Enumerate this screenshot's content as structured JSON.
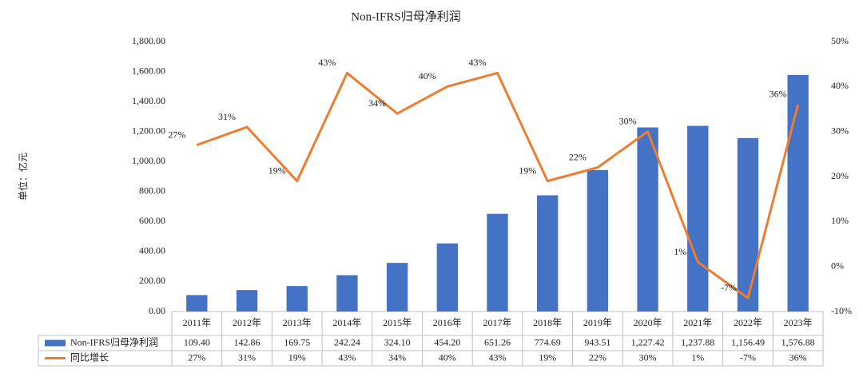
{
  "chart_data": {
    "type": "bar",
    "title": "Non-IFRS归母净利润",
    "y_label": "单位：亿元",
    "categories": [
      "2011年",
      "2012年",
      "2013年",
      "2014年",
      "2015年",
      "2016年",
      "2017年",
      "2018年",
      "2019年",
      "2020年",
      "2021年",
      "2022年",
      "2023年"
    ],
    "series": [
      {
        "name": "Non-IFRS归母净利润",
        "type": "bar",
        "color": "#4472c4",
        "values": [
          109.4,
          142.86,
          169.75,
          242.24,
          324.1,
          454.2,
          651.26,
          774.69,
          943.51,
          1227.42,
          1237.88,
          1156.49,
          1576.88
        ],
        "value_labels": [
          "109.40",
          "142.86",
          "169.75",
          "242.24",
          "324.10",
          "454.20",
          "651.26",
          "774.69",
          "943.51",
          "1,227.42",
          "1,237.88",
          "1,156.49",
          "1,576.88"
        ]
      },
      {
        "name": "同比增长",
        "type": "line",
        "axis": "y2",
        "color": "#ed7d31",
        "values": [
          27,
          31,
          19,
          43,
          34,
          40,
          43,
          19,
          22,
          30,
          1,
          -7,
          36
        ],
        "value_labels": [
          "27%",
          "31%",
          "19%",
          "43%",
          "34%",
          "40%",
          "43%",
          "19%",
          "22%",
          "30%",
          "1%",
          "-7%",
          "36%"
        ]
      }
    ],
    "ylim": [
      0,
      1800
    ],
    "yticks": [
      {
        "value": 0,
        "label": "0.00"
      },
      {
        "value": 200,
        "label": "200.00"
      },
      {
        "value": 400,
        "label": "400.00"
      },
      {
        "value": 600,
        "label": "600.00"
      },
      {
        "value": 800,
        "label": "800.00"
      },
      {
        "value": 1000,
        "label": "1,000.00"
      },
      {
        "value": 1200,
        "label": "1,200.00"
      },
      {
        "value": 1400,
        "label": "1,400.00"
      },
      {
        "value": 1600,
        "label": "1,600.00"
      },
      {
        "value": 1800,
        "label": "1,800.00"
      }
    ],
    "y2lim": [
      -10,
      50
    ],
    "y2ticks": [
      {
        "value": -10,
        "label": "-10%"
      },
      {
        "value": 0,
        "label": "0%"
      },
      {
        "value": 10,
        "label": "10%"
      },
      {
        "value": 20,
        "label": "20%"
      },
      {
        "value": 30,
        "label": "30%"
      },
      {
        "value": 40,
        "label": "40%"
      },
      {
        "value": 50,
        "label": "50%"
      }
    ],
    "grid": false
  }
}
